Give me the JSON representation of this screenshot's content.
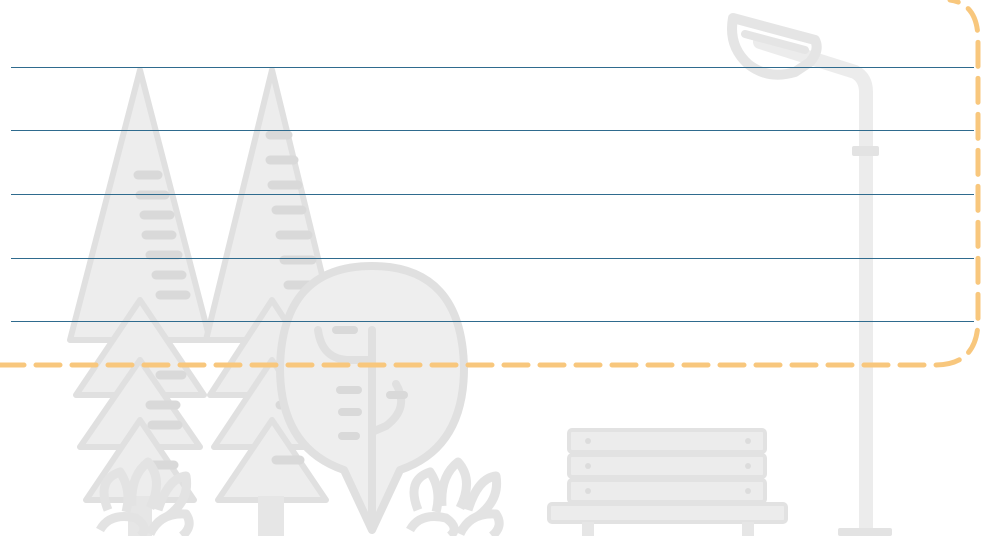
{
  "page": {
    "background_color": "#ffffff"
  },
  "notepad": {
    "rule_count": 5,
    "rule_color": "#2f6b8e",
    "border_color": "#f8c77d",
    "border_style": "dashed"
  },
  "scene": {
    "illustration_color": "#ececec",
    "illustration_detail_color": "#d9d9d9",
    "elements": [
      "pine-tree-icon",
      "pine-tree-icon",
      "round-tree-icon",
      "bush-icon",
      "bush-icon",
      "park-bench-icon",
      "street-lamp-icon"
    ]
  }
}
